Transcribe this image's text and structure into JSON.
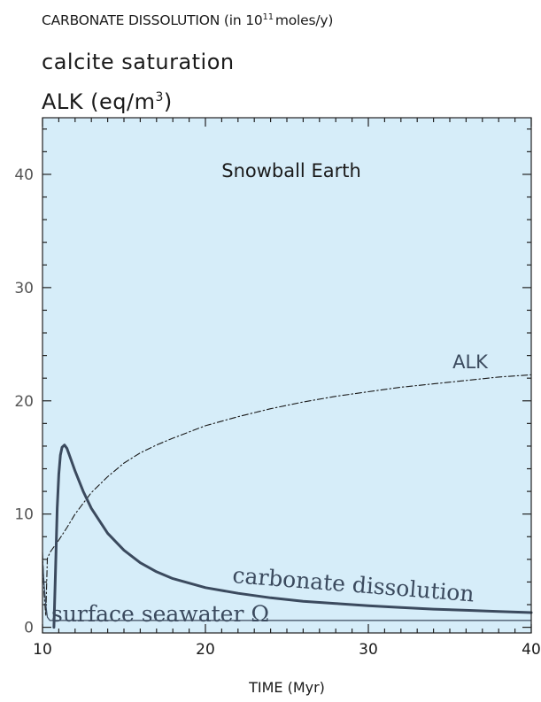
{
  "headers": {
    "line1_prefix": "CARBONATE DISSOLUTION (in 10",
    "line1_exp": "11",
    "line1_suffix": "moles/y)",
    "line2": "calcite saturation",
    "line3_prefix": "ALK  (eq/m",
    "line3_exp": "3",
    "line3_suffix": ")"
  },
  "chart_data": {
    "type": "line",
    "title": "Snowball Earth",
    "xlabel": "TIME (Myr)",
    "ylabel": "",
    "xlim": [
      10,
      40
    ],
    "ylim": [
      -0.5,
      45
    ],
    "xticks": [
      10,
      20,
      30,
      40
    ],
    "yticks": [
      0,
      10,
      20,
      30,
      40
    ],
    "grid": false,
    "background_color": "#d6edf9",
    "series": [
      {
        "name": "ALK",
        "style": "dash-dot",
        "color": "#1a1a1a",
        "x": [
          10.0,
          10.1,
          10.2,
          10.3,
          10.5,
          11.0,
          11.5,
          12.0,
          13.0,
          14.0,
          15.0,
          16.0,
          17.0,
          18.0,
          20.0,
          22.0,
          24.0,
          26.0,
          28.0,
          30.0,
          32.0,
          34.0,
          36.0,
          38.0,
          40.0
        ],
        "y": [
          6.6,
          3.0,
          1.0,
          6.1,
          6.7,
          7.7,
          8.8,
          10.0,
          11.9,
          13.3,
          14.5,
          15.4,
          16.1,
          16.7,
          17.8,
          18.6,
          19.3,
          19.9,
          20.4,
          20.8,
          21.2,
          21.5,
          21.8,
          22.1,
          22.3
        ]
      },
      {
        "name": "carbonate dissolution",
        "style": "solid-thick",
        "color": "#3b4a5e",
        "x": [
          10.7,
          10.8,
          10.9,
          11.0,
          11.1,
          11.2,
          11.35,
          11.5,
          11.7,
          12.0,
          12.5,
          13.0,
          14.0,
          15.0,
          16.0,
          17.0,
          18.0,
          20.0,
          22.0,
          24.0,
          26.0,
          28.0,
          30.0,
          32.0,
          34.0,
          36.0,
          38.0,
          40.0
        ],
        "y": [
          0.0,
          5.0,
          10.5,
          13.5,
          15.2,
          15.9,
          16.1,
          15.8,
          15.0,
          13.8,
          12.0,
          10.5,
          8.3,
          6.8,
          5.7,
          4.9,
          4.3,
          3.5,
          3.0,
          2.6,
          2.3,
          2.1,
          1.9,
          1.75,
          1.6,
          1.5,
          1.4,
          1.3
        ]
      },
      {
        "name": "surface seawater Ω",
        "style": "solid-thin",
        "color": "#3b4a5e",
        "x": [
          10.0,
          10.1,
          10.2,
          10.3,
          10.45,
          10.6,
          10.8,
          11.0,
          12.0,
          20.0,
          30.0,
          40.0
        ],
        "y": [
          6.0,
          3.8,
          2.0,
          0.9,
          0.6,
          0.6,
          0.6,
          0.6,
          0.6,
          0.6,
          0.6,
          0.6
        ]
      }
    ],
    "annotations": [
      {
        "text": "ALK",
        "series": "ALK"
      },
      {
        "text": "carbonate dissolution",
        "series": "carbonate dissolution"
      },
      {
        "text": "surface seawater Ω",
        "series": "surface seawater Ω"
      }
    ]
  }
}
